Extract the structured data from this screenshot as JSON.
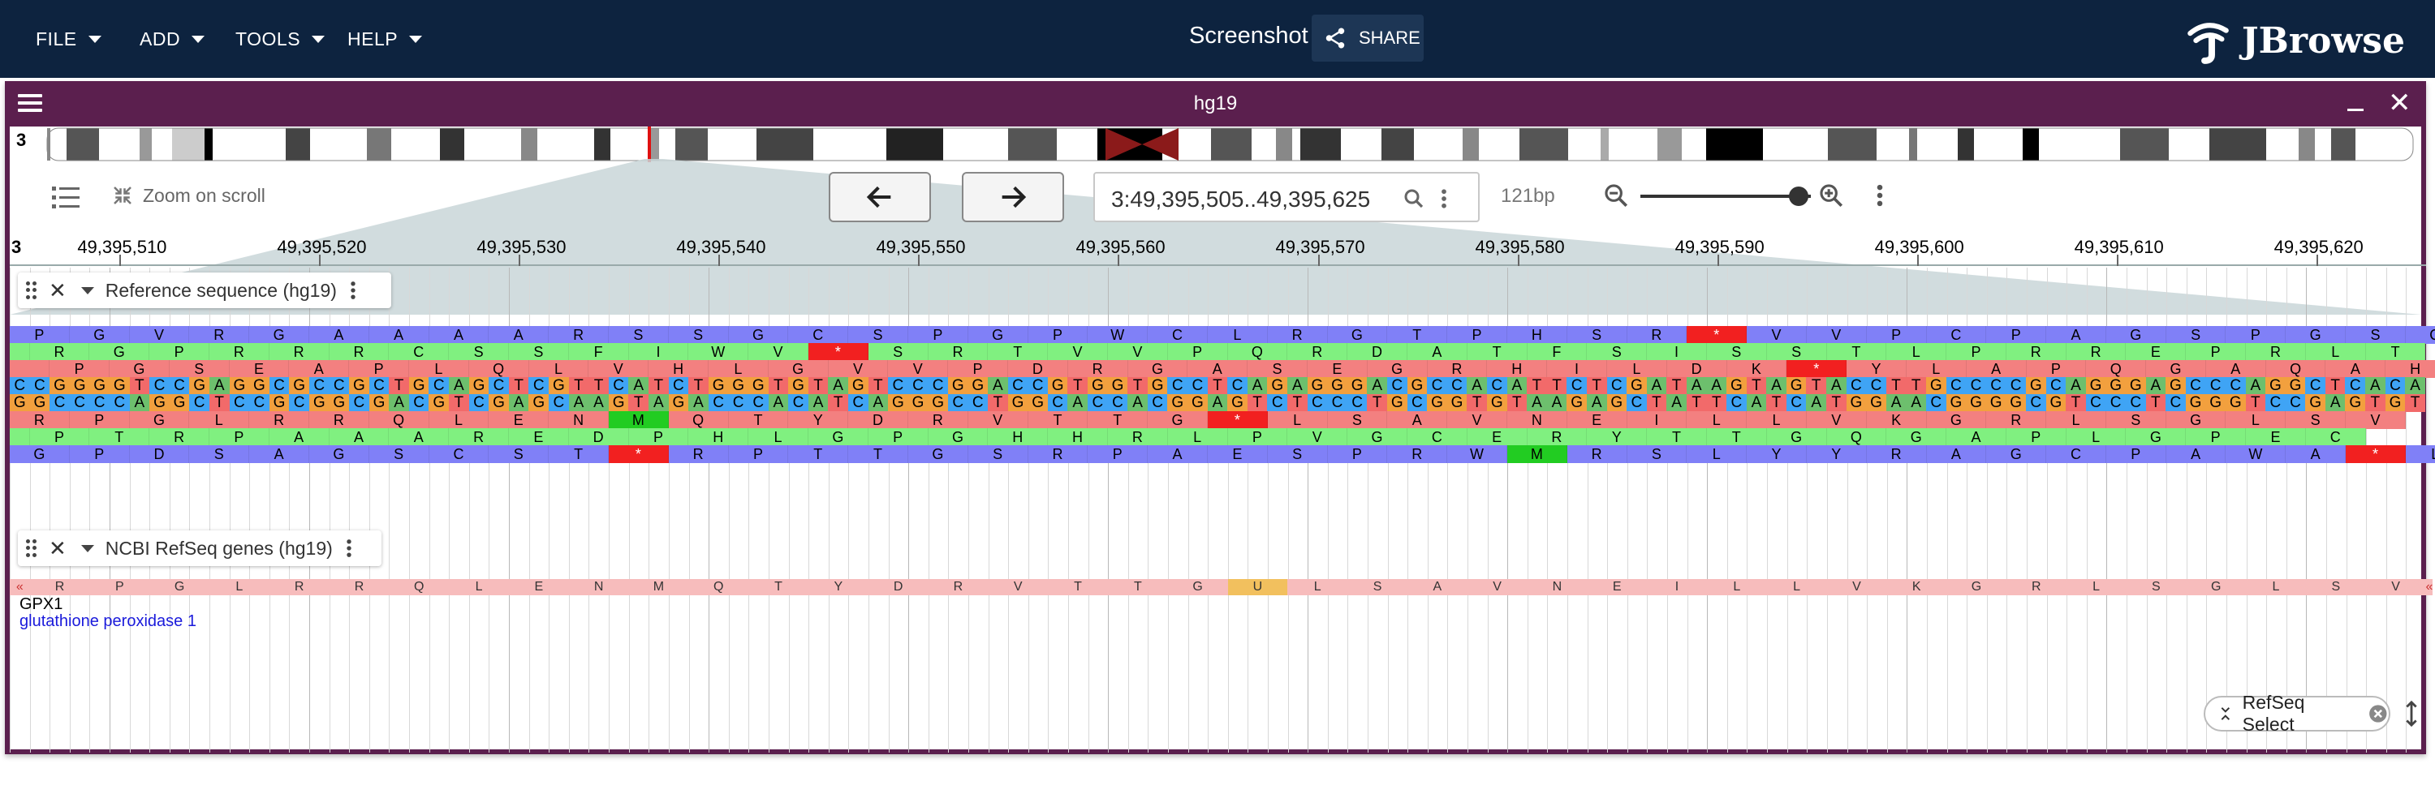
{
  "menubar": {
    "file": "FILE",
    "add": "ADD",
    "tools": "TOOLS",
    "help": "HELP",
    "session_title": "Screenshot",
    "share": "SHARE",
    "logo_text": "JBrowse"
  },
  "view": {
    "title": "hg19",
    "chromosome": "3",
    "zoom_on_scroll": "Zoom on scroll",
    "location": "3:49,395,505..49,395,625",
    "bp_width": "121bp",
    "zoom_level": 0.93,
    "ruler_chrom": "3",
    "ruler_ticks": [
      "49,395,510",
      "49,395,520",
      "49,395,530",
      "49,395,540",
      "49,395,550",
      "49,395,560",
      "49,395,570",
      "49,395,580",
      "49,395,590",
      "49,395,600",
      "49,395,610",
      "49,395,620"
    ]
  },
  "tracks": {
    "reference": {
      "label": "Reference sequence (hg19)",
      "frame_fwd_1": "PGVRGAAAARSSGCSPGPWCLRGTPHSR*VVPCPAGSPGSQ",
      "frame_fwd_2": "RGPRRRCSSFIWV*SRTVVPQRDATFSISSTLPRREPRLT",
      "frame_fwd_3": "PGSEAPLQLVHLGVVPDRGASEGRHILDK*YLAPQGAQAH",
      "forward": "CCGGGGTCCGAGGCGCCGCTGCAGCTCGTTCATCTGGGTGTAGTCCCGGACCGTGGTGCCTCAGAGGGACGCCACATTCTCGATAAGTAGTACCTTGCCCCGCAGGGAGCCCAGGCTCACA",
      "reverse": "GGCCCCAGGCTCCGCGGCGACGTCGAGCAAGTAGACCCACATCAGGGCCTGGCACCACGGAGTCTCCCTGCGGTGTAAGAGCTATTCATCATGGAACGGGGCGTCCCTCGGGTCCGAGTGT",
      "frame_rev_1": "RPGLRRQLENMQTYDRVTTG*LSAVNEILLVKGRLSGLSV",
      "frame_rev_2": "PTRPAAAREDPHLGPGHHRLPVGCERYTTGQGAPLGPEC",
      "frame_rev_3": "GPDSAGSCST*RPTTGSRPAESPRWMRSLYYRAGCPAWA*L"
    },
    "genes": {
      "label": "NCBI RefSeq genes (hg19)",
      "protein": "RPGLRRQLENMQTYDRVTTGULSAVNEILLVKGRLSGLSV",
      "gene_name": "GPX1",
      "gene_description": "glutathione peroxidase 1",
      "selenocysteine": "U"
    }
  },
  "footer": {
    "refseq_chip": "RefSeq Select"
  },
  "colors": {
    "appbar": "#0d233f",
    "view_header": "#5b1f4e",
    "frame_blue": "#8080f7",
    "frame_green": "#80f080",
    "frame_red": "#f38080",
    "stop": "#f22020",
    "start": "#22cc22",
    "base_A": "#6dbf6d",
    "base_C": "#3fa4f5",
    "base_G": "#f2a03e",
    "base_T": "#f26a6a",
    "gene_fill": "#f7bcbc",
    "selenocysteine": "#f2c05e"
  },
  "icons": [
    "caret-down-icon",
    "share-icon",
    "jbrowse-logo-icon",
    "hamburger-icon",
    "minimize-icon",
    "close-icon",
    "track-selector-icon",
    "zoom-on-scroll-icon",
    "arrow-left-icon",
    "arrow-right-icon",
    "search-icon",
    "kebab-icon",
    "zoom-out-icon",
    "zoom-in-icon",
    "drag-handle-icon",
    "chevron-down-icon",
    "cancel-icon",
    "expand-vertical-icon"
  ]
}
